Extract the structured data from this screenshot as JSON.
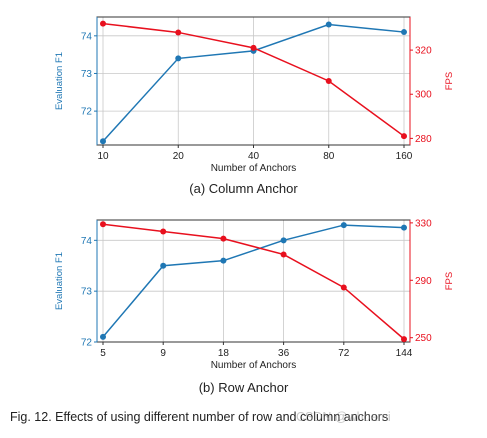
{
  "chart_data": [
    {
      "type": "line",
      "categories": [
        "10",
        "20",
        "40",
        "80",
        "160"
      ],
      "xlabel": "Number of Anchors",
      "grid": true,
      "series": [
        {
          "name": "Evaluation F1",
          "axis": "left",
          "color": "#1f77b4",
          "values": [
            71.2,
            73.4,
            73.6,
            74.3,
            74.1
          ]
        },
        {
          "name": "FPS",
          "axis": "right",
          "color": "#e8101e",
          "values": [
            332,
            328,
            321,
            306,
            281
          ]
        }
      ],
      "y_left": {
        "label": "Evaluation F1",
        "ticks": [
          "72",
          "73",
          "74"
        ],
        "range": [
          71.1,
          74.5
        ]
      },
      "y_right": {
        "label": "FPS",
        "ticks": [
          "280",
          "300",
          "320"
        ],
        "range": [
          277,
          335
        ]
      }
    },
    {
      "type": "line",
      "categories": [
        "5",
        "9",
        "18",
        "36",
        "72",
        "144"
      ],
      "xlabel": "Number of Anchors",
      "grid": true,
      "series": [
        {
          "name": "Evaluation F1",
          "axis": "left",
          "color": "#1f77b4",
          "values": [
            72.1,
            73.5,
            73.6,
            74.0,
            74.3,
            74.25
          ]
        },
        {
          "name": "FPS",
          "axis": "right",
          "color": "#e8101e",
          "values": [
            329,
            324,
            319,
            308,
            285,
            249
          ]
        }
      ],
      "y_left": {
        "label": "Evaluation F1",
        "ticks": [
          "72",
          "73",
          "74"
        ],
        "range": [
          72.0,
          74.4
        ]
      },
      "y_right": {
        "label": "FPS",
        "ticks": [
          "250",
          "290",
          "330"
        ],
        "range": [
          247,
          332
        ]
      }
    }
  ],
  "captions": {
    "a": "(a) Column Anchor",
    "b": "(b) Row Anchor",
    "figure": "Fig. 12. Effects of using different number of row and column anchors"
  },
  "watermark": "CSDN @whoami"
}
